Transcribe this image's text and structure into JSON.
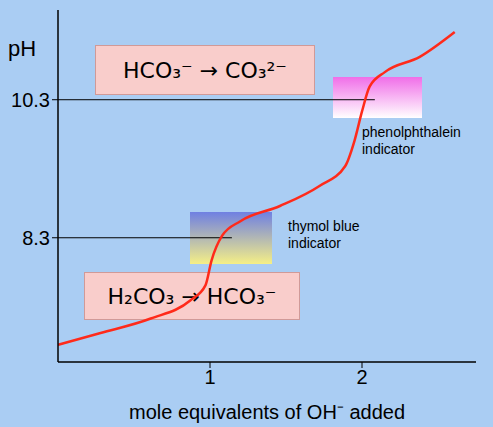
{
  "chart_data": {
    "type": "line",
    "x_label": "mole equivalents of OH⁻ added",
    "y_label": "pH",
    "x": [
      0,
      0.28,
      0.61,
      0.87,
      0.97,
      1.01,
      1.08,
      1.2,
      1.46,
      1.72,
      1.89,
      1.95,
      2.0,
      2.05,
      2.15,
      2.38,
      2.61
    ],
    "values": [
      6.75,
      6.92,
      7.13,
      7.39,
      7.61,
      7.97,
      8.33,
      8.54,
      8.76,
      9.05,
      9.34,
      9.7,
      10.13,
      10.49,
      10.7,
      10.92,
      11.28
    ],
    "color": "#ff2a1a",
    "xlim": [
      0,
      2.75
    ],
    "xticks": [
      1,
      2
    ],
    "ylim": [
      6.5,
      11.6
    ],
    "yticks": [
      8.3,
      10.3
    ],
    "annotations": [
      "HCO₃⁻ → CO₃²⁻",
      "H₂CO₃ → HCO₃⁻",
      "thymol blue indicator",
      "phenolphthalein indicator"
    ]
  }
}
